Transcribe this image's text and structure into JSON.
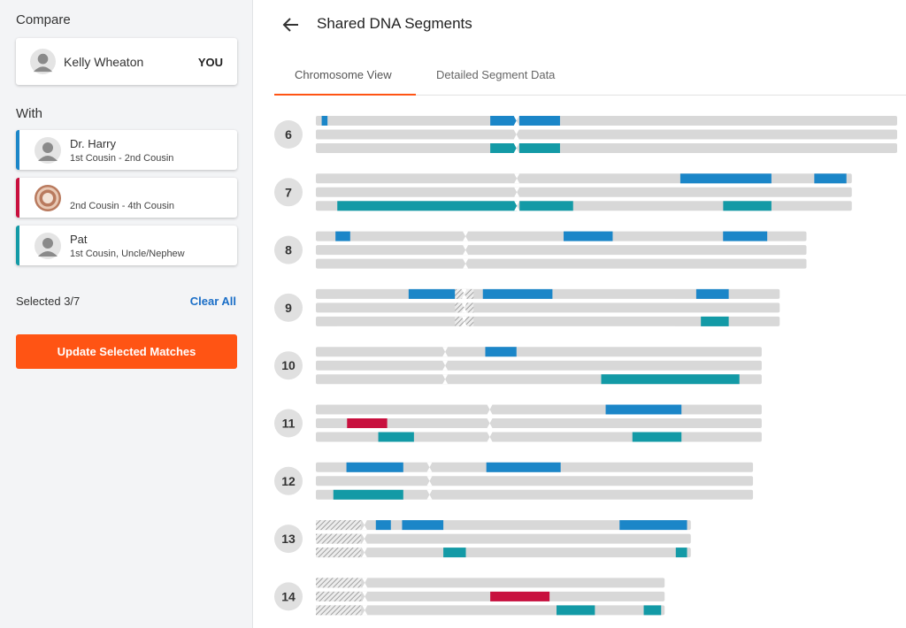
{
  "sidebar": {
    "compare_heading": "Compare",
    "you_card": {
      "name": "Kelly Wheaton",
      "tag": "YOU",
      "icon": "person-icon"
    },
    "with_heading": "With",
    "matches": [
      {
        "name": "Dr. Harry",
        "relationship": "1st Cousin - 2nd Cousin",
        "color": "#1b86c8",
        "icon": "person-icon"
      },
      {
        "name": "",
        "relationship": "2nd Cousin - 4th Cousin",
        "color": "#c8103e",
        "icon": "photo-avatar"
      },
      {
        "name": "Pat",
        "relationship": "1st Cousin, Uncle/Nephew",
        "color": "#139aa6",
        "icon": "person-icon"
      }
    ],
    "selected_text": "Selected 3/7",
    "clear_all": "Clear All",
    "update_button": "Update Selected Matches"
  },
  "header": {
    "back_icon": "arrow-left-icon",
    "title": "Shared DNA Segments"
  },
  "tabs": [
    {
      "label": "Chromosome View",
      "active": true
    },
    {
      "label": "Detailed Segment Data",
      "active": false
    }
  ],
  "colors": {
    "match1": "#1b86c8",
    "match2": "#c8103e",
    "match3": "#139aa6",
    "track": "#d8d8d8",
    "accent": "#ff5414"
  },
  "chromosomes": [
    {
      "label": "6",
      "length": 1.0,
      "centromere": 0.345,
      "stripes": 0,
      "segments": [
        [
          [
            0.01,
            0.02
          ],
          [
            0.3,
            0.345
          ],
          [
            0.35,
            0.42
          ]
        ],
        [],
        [
          [
            0.3,
            0.345
          ],
          [
            0.35,
            0.42
          ]
        ]
      ]
    },
    {
      "label": "7",
      "length": 0.922,
      "centromere": 0.375,
      "stripes": 0,
      "segments": [
        [
          [
            0.68,
            0.85
          ],
          [
            0.93,
            0.99
          ]
        ],
        [],
        [
          [
            0.04,
            0.375
          ],
          [
            0.38,
            0.48
          ],
          [
            0.76,
            0.85
          ]
        ]
      ]
    },
    {
      "label": "8",
      "length": 0.844,
      "centromere": 0.305,
      "stripes": 0,
      "segments": [
        [
          [
            0.04,
            0.07
          ],
          [
            0.505,
            0.605
          ],
          [
            0.83,
            0.92
          ]
        ],
        [],
        []
      ]
    },
    {
      "label": "9",
      "length": 0.798,
      "centromere": 0.32,
      "stripes": 0.04,
      "segments": [
        [
          [
            0.2,
            0.3
          ],
          [
            0.36,
            0.51
          ],
          [
            0.82,
            0.89
          ]
        ],
        [],
        [
          [
            0.83,
            0.89
          ]
        ]
      ]
    },
    {
      "label": "10",
      "length": 0.767,
      "centromere": 0.29,
      "stripes": 0,
      "segments": [
        [
          [
            0.38,
            0.45
          ]
        ],
        [],
        [
          [
            0.64,
            0.95
          ]
        ]
      ]
    },
    {
      "label": "11",
      "length": 0.767,
      "centromere": 0.39,
      "stripes": 0,
      "segments": [
        [
          [
            0.65,
            0.82
          ]
        ],
        [
          [
            0.07,
            0.16
          ]
        ],
        [
          [
            0.14,
            0.22
          ],
          [
            0.71,
            0.82
          ]
        ]
      ]
    },
    {
      "label": "12",
      "length": 0.752,
      "centromere": 0.26,
      "stripes": 0,
      "segments": [
        [
          [
            0.07,
            0.2
          ],
          [
            0.39,
            0.56
          ]
        ],
        [],
        [
          [
            0.04,
            0.2
          ]
        ]
      ]
    },
    {
      "label": "13",
      "length": 0.645,
      "centromere": 0.13,
      "stripes": 0.12,
      "segments": [
        [
          [
            0.16,
            0.2
          ],
          [
            0.23,
            0.34
          ],
          [
            0.81,
            0.99
          ]
        ],
        [],
        [
          [
            0.34,
            0.4
          ],
          [
            0.96,
            0.99
          ]
        ]
      ]
    },
    {
      "label": "14",
      "length": 0.6,
      "centromere": 0.14,
      "stripes": 0.13,
      "segments": [
        [],
        [
          [
            0.5,
            0.67
          ]
        ],
        [
          [
            0.69,
            0.8
          ],
          [
            0.94,
            0.99
          ]
        ]
      ]
    }
  ]
}
